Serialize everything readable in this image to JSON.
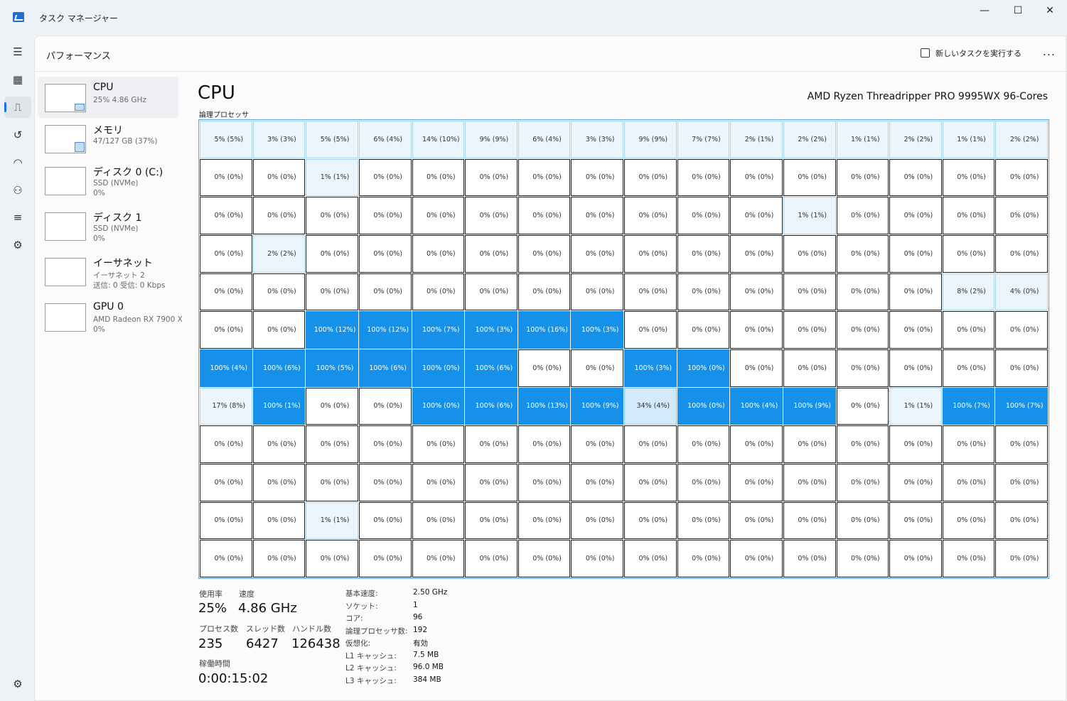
{
  "window": {
    "title": "タスク マネージャー",
    "minimize": "—",
    "maximize": "☐",
    "close": "✕"
  },
  "rail": {
    "icons": [
      "menu-icon",
      "processes-icon",
      "performance-icon",
      "history-icon",
      "startup-icon",
      "users-icon",
      "details-icon",
      "services-icon",
      "settings-icon"
    ]
  },
  "header": {
    "title": "パフォーマンス",
    "new_task": "新しいタスクを実行する",
    "more": "..."
  },
  "resources": [
    {
      "name": "CPU",
      "line1": "25% 4.86 GHz",
      "line2": ""
    },
    {
      "name": "メモリ",
      "line1": "47/127 GB (37%)",
      "line2": ""
    },
    {
      "name": "ディスク 0 (C:)",
      "line1": "SSD (NVMe)",
      "line2": "0%"
    },
    {
      "name": "ディスク 1",
      "line1": "SSD (NVMe)",
      "line2": "0%"
    },
    {
      "name": "イーサネット",
      "line1": "イーサネット 2",
      "line2": "送信: 0 受信: 0 Kbps"
    },
    {
      "name": "GPU 0",
      "line1": "AMD Radeon RX 7900 X",
      "line2": "0%"
    }
  ],
  "cpu": {
    "title": "CPU",
    "model": "AMD Ryzen Threadripper PRO 9995WX 96-Cores",
    "grid_label": "論理プロセッサ",
    "cells": [
      [
        "5% (5%)",
        "3% (3%)",
        "5% (5%)",
        "6% (4%)",
        "14% (10%)",
        "9% (9%)",
        "6% (4%)",
        "3% (3%)",
        "9% (9%)",
        "7% (7%)",
        "2% (1%)",
        "2% (2%)",
        "1% (1%)",
        "2% (2%)",
        "1% (1%)",
        "2% (2%)"
      ],
      [
        "0% (0%)",
        "0% (0%)",
        "1% (1%)",
        "0% (0%)",
        "0% (0%)",
        "0% (0%)",
        "0% (0%)",
        "0% (0%)",
        "0% (0%)",
        "0% (0%)",
        "0% (0%)",
        "0% (0%)",
        "0% (0%)",
        "0% (0%)",
        "0% (0%)",
        "0% (0%)"
      ],
      [
        "0% (0%)",
        "0% (0%)",
        "0% (0%)",
        "0% (0%)",
        "0% (0%)",
        "0% (0%)",
        "0% (0%)",
        "0% (0%)",
        "0% (0%)",
        "0% (0%)",
        "0% (0%)",
        "1% (1%)",
        "0% (0%)",
        "0% (0%)",
        "0% (0%)",
        "0% (0%)"
      ],
      [
        "0% (0%)",
        "2% (2%)",
        "0% (0%)",
        "0% (0%)",
        "0% (0%)",
        "0% (0%)",
        "0% (0%)",
        "0% (0%)",
        "0% (0%)",
        "0% (0%)",
        "0% (0%)",
        "0% (0%)",
        "0% (0%)",
        "0% (0%)",
        "0% (0%)",
        "0% (0%)"
      ],
      [
        "0% (0%)",
        "0% (0%)",
        "0% (0%)",
        "0% (0%)",
        "0% (0%)",
        "0% (0%)",
        "0% (0%)",
        "0% (0%)",
        "0% (0%)",
        "0% (0%)",
        "0% (0%)",
        "0% (0%)",
        "0% (0%)",
        "0% (0%)",
        "8% (2%)",
        "4% (0%)"
      ],
      [
        "0% (0%)",
        "0% (0%)",
        "100% (12%)",
        "100% (12%)",
        "100% (7%)",
        "100% (3%)",
        "100% (16%)",
        "100% (3%)",
        "0% (0%)",
        "0% (0%)",
        "0% (0%)",
        "0% (0%)",
        "0% (0%)",
        "0% (0%)",
        "0% (0%)",
        "0% (0%)"
      ],
      [
        "100% (4%)",
        "100% (6%)",
        "100% (5%)",
        "100% (6%)",
        "100% (0%)",
        "100% (6%)",
        "0% (0%)",
        "0% (0%)",
        "100% (3%)",
        "100% (0%)",
        "0% (0%)",
        "0% (0%)",
        "0% (0%)",
        "0% (0%)",
        "0% (0%)",
        "0% (0%)"
      ],
      [
        "17% (8%)",
        "100% (1%)",
        "0% (0%)",
        "0% (0%)",
        "100% (0%)",
        "100% (6%)",
        "100% (13%)",
        "100% (9%)",
        "34% (4%)",
        "100% (0%)",
        "100% (4%)",
        "100% (9%)",
        "0% (0%)",
        "1% (1%)",
        "100% (7%)",
        "100% (7%)"
      ],
      [
        "0% (0%)",
        "0% (0%)",
        "0% (0%)",
        "0% (0%)",
        "0% (0%)",
        "0% (0%)",
        "0% (0%)",
        "0% (0%)",
        "0% (0%)",
        "0% (0%)",
        "0% (0%)",
        "0% (0%)",
        "0% (0%)",
        "0% (0%)",
        "0% (0%)",
        "0% (0%)"
      ],
      [
        "0% (0%)",
        "0% (0%)",
        "0% (0%)",
        "0% (0%)",
        "0% (0%)",
        "0% (0%)",
        "0% (0%)",
        "0% (0%)",
        "0% (0%)",
        "0% (0%)",
        "0% (0%)",
        "0% (0%)",
        "0% (0%)",
        "0% (0%)",
        "0% (0%)",
        "0% (0%)"
      ],
      [
        "0% (0%)",
        "0% (0%)",
        "1% (1%)",
        "0% (0%)",
        "0% (0%)",
        "0% (0%)",
        "0% (0%)",
        "0% (0%)",
        "0% (0%)",
        "0% (0%)",
        "0% (0%)",
        "0% (0%)",
        "0% (0%)",
        "0% (0%)",
        "0% (0%)",
        "0% (0%)"
      ],
      [
        "0% (0%)",
        "0% (0%)",
        "0% (0%)",
        "0% (0%)",
        "0% (0%)",
        "0% (0%)",
        "0% (0%)",
        "0% (0%)",
        "0% (0%)",
        "0% (0%)",
        "0% (0%)",
        "0% (0%)",
        "0% (0%)",
        "0% (0%)",
        "0% (0%)",
        "0% (0%)"
      ]
    ]
  },
  "stats": {
    "utilization_label": "使用率",
    "utilization": "25%",
    "speed_label": "速度",
    "speed": "4.86 GHz",
    "processes_label": "プロセス数",
    "processes": "235",
    "threads_label": "スレッド数",
    "threads": "6427",
    "handles_label": "ハンドル数",
    "handles": "126438",
    "uptime_label": "稼働時間",
    "uptime": "0:00:15:02"
  },
  "specs": [
    {
      "k": "基本速度:",
      "v": "2.50 GHz"
    },
    {
      "k": "ソケット:",
      "v": "1"
    },
    {
      "k": "コア:",
      "v": "96"
    },
    {
      "k": "論理プロセッサ数:",
      "v": "192"
    },
    {
      "k": "仮想化:",
      "v": "有効"
    },
    {
      "k": "L1 キャッシュ:",
      "v": "7.5 MB"
    },
    {
      "k": "L2 キャッシュ:",
      "v": "96.0 MB"
    },
    {
      "k": "L3 キャッシュ:",
      "v": "384 MB"
    }
  ],
  "colors": {
    "accent": "#1591ea",
    "light": "#eaf5fd",
    "grid_border": "#5aa7e3"
  }
}
